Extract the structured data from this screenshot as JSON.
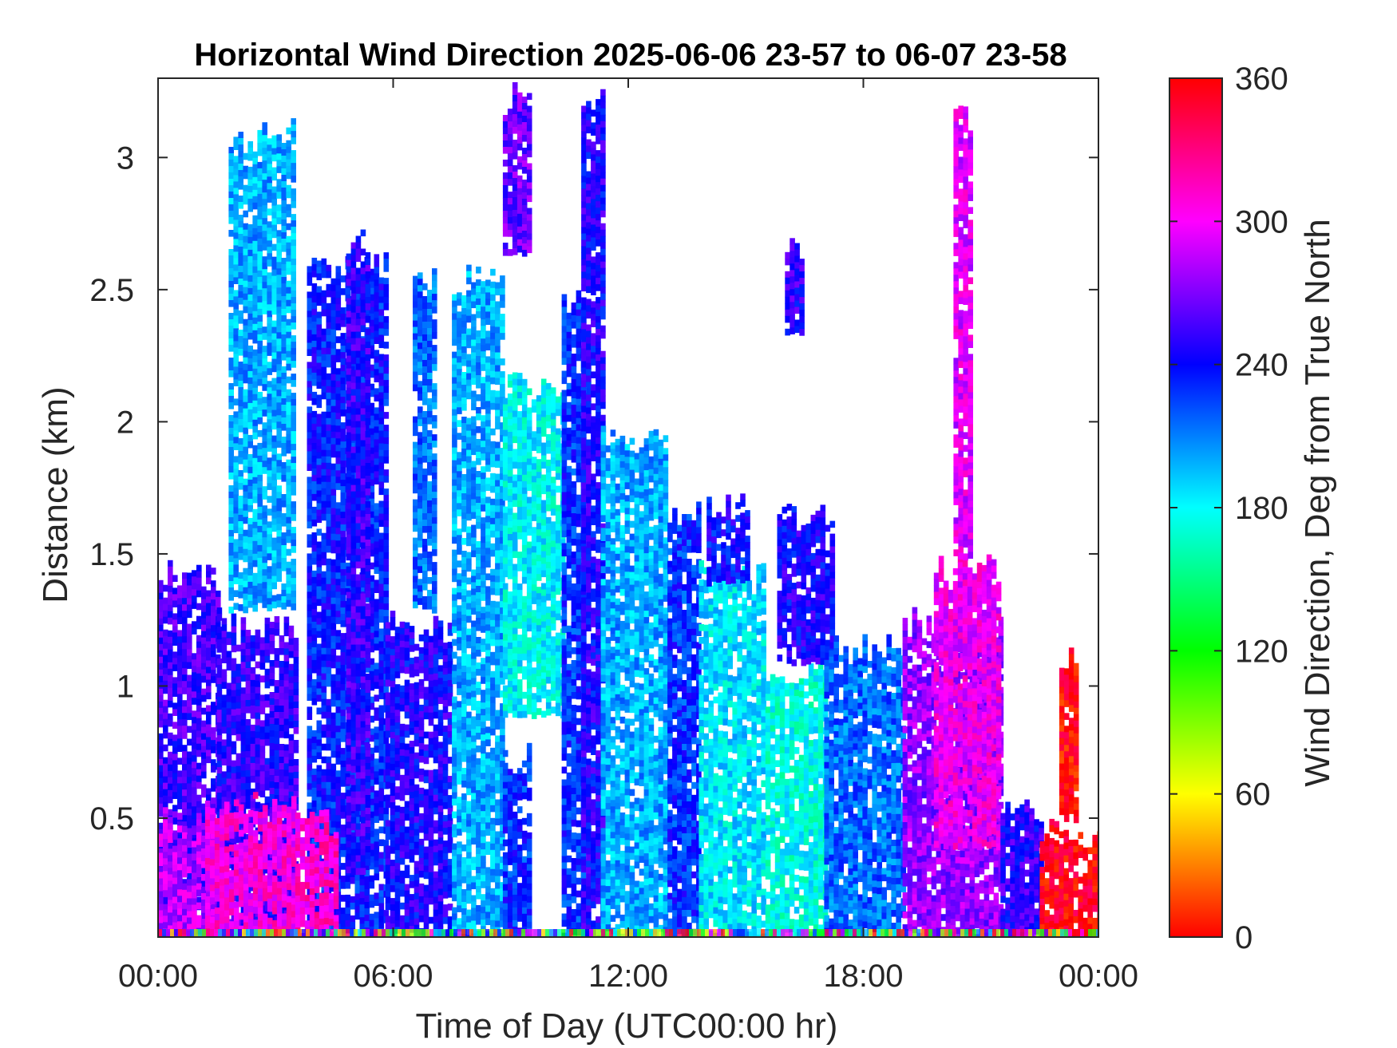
{
  "chart_data": {
    "type": "heatmap",
    "title": "Horizontal Wind Direction 2025-06-06 23-57 to 06-07 23-58",
    "xlabel": "Time of Day (UTC00:00 hr)",
    "ylabel": "Distance (km)",
    "x_ticks": [
      "00:00",
      "06:00",
      "12:00",
      "18:00",
      "00:00"
    ],
    "x_tick_hours": [
      0,
      6,
      12,
      18,
      24
    ],
    "xlim": [
      0,
      24
    ],
    "y_ticks": [
      "0.5",
      "1",
      "1.5",
      "2",
      "2.5",
      "3"
    ],
    "y_tick_values": [
      0.5,
      1,
      1.5,
      2,
      2.5,
      3
    ],
    "ylim": [
      0.05,
      3.3
    ],
    "colorbar": {
      "label": "Wind Direction, Deg from True North",
      "ticks": [
        "0",
        "60",
        "120",
        "180",
        "240",
        "300",
        "360"
      ],
      "tick_values": [
        0,
        60,
        120,
        180,
        240,
        300,
        360
      ],
      "range": [
        0,
        360
      ]
    },
    "colormap": [
      "#ff0000",
      "#ffff00",
      "#00ff00",
      "#00ffff",
      "#0000ff",
      "#ff00ff",
      "#ff0000"
    ],
    "grid": false,
    "regions": [
      {
        "x": [
          0.0,
          1.5
        ],
        "y": [
          0.05,
          1.48
        ],
        "dir": 255
      },
      {
        "x": [
          0.0,
          1.5
        ],
        "y": [
          0.05,
          0.55
        ],
        "dir": 285
      },
      {
        "x": [
          1.5,
          3.5
        ],
        "y": [
          0.05,
          1.3
        ],
        "dir": 250
      },
      {
        "x": [
          1.2,
          3.5
        ],
        "y": [
          0.05,
          0.6
        ],
        "dir": 305
      },
      {
        "x": [
          1.8,
          3.5
        ],
        "y": [
          1.3,
          3.15
        ],
        "dir": 200
      },
      {
        "x": [
          3.8,
          5.8
        ],
        "y": [
          0.05,
          2.65
        ],
        "dir": 235
      },
      {
        "x": [
          4.8,
          5.3
        ],
        "y": [
          0.3,
          2.75
        ],
        "dir": 250
      },
      {
        "x": [
          3.5,
          4.5
        ],
        "y": [
          0.05,
          0.55
        ],
        "dir": 310
      },
      {
        "x": [
          5.8,
          7.5
        ],
        "y": [
          0.05,
          1.3
        ],
        "dir": 245
      },
      {
        "x": [
          6.5,
          7.0
        ],
        "y": [
          1.3,
          2.6
        ],
        "dir": 215
      },
      {
        "x": [
          7.5,
          8.8
        ],
        "y": [
          0.05,
          2.6
        ],
        "dir": 200
      },
      {
        "x": [
          8.8,
          9.5
        ],
        "y": [
          0.05,
          0.8
        ],
        "dir": 230
      },
      {
        "x": [
          8.8,
          10.3
        ],
        "y": [
          0.9,
          2.2
        ],
        "dir": 180
      },
      {
        "x": [
          8.8,
          9.5
        ],
        "y": [
          2.65,
          3.3
        ],
        "dir": 265
      },
      {
        "x": [
          10.3,
          10.8
        ],
        "y": [
          0.05,
          2.5
        ],
        "dir": 230
      },
      {
        "x": [
          10.8,
          11.3
        ],
        "y": [
          0.05,
          3.3
        ],
        "dir": 245
      },
      {
        "x": [
          11.3,
          13.0
        ],
        "y": [
          0.05,
          2.0
        ],
        "dir": 200
      },
      {
        "x": [
          13.0,
          13.8
        ],
        "y": [
          0.05,
          1.7
        ],
        "dir": 230
      },
      {
        "x": [
          13.8,
          15.5
        ],
        "y": [
          0.05,
          1.5
        ],
        "dir": 185
      },
      {
        "x": [
          14.0,
          15.0
        ],
        "y": [
          1.4,
          1.75
        ],
        "dir": 240
      },
      {
        "x": [
          15.5,
          17.0
        ],
        "y": [
          0.05,
          1.1
        ],
        "dir": 175
      },
      {
        "x": [
          15.8,
          17.2
        ],
        "y": [
          1.1,
          1.7
        ],
        "dir": 245
      },
      {
        "x": [
          16.0,
          16.4
        ],
        "y": [
          2.35,
          2.7
        ],
        "dir": 250
      },
      {
        "x": [
          17.0,
          19.0
        ],
        "y": [
          0.05,
          1.2
        ],
        "dir": 215
      },
      {
        "x": [
          19.0,
          21.5
        ],
        "y": [
          0.05,
          1.3
        ],
        "dir": 275
      },
      {
        "x": [
          19.8,
          21.5
        ],
        "y": [
          0.4,
          1.5
        ],
        "dir": 300
      },
      {
        "x": [
          20.3,
          20.7
        ],
        "y": [
          1.5,
          3.2
        ],
        "dir": 295
      },
      {
        "x": [
          21.5,
          22.5
        ],
        "y": [
          0.05,
          0.6
        ],
        "dir": 250
      },
      {
        "x": [
          22.5,
          24.0
        ],
        "y": [
          0.05,
          0.5
        ],
        "dir": 355
      },
      {
        "x": [
          23.0,
          23.4
        ],
        "y": [
          0.5,
          1.15
        ],
        "dir": 0
      }
    ]
  }
}
